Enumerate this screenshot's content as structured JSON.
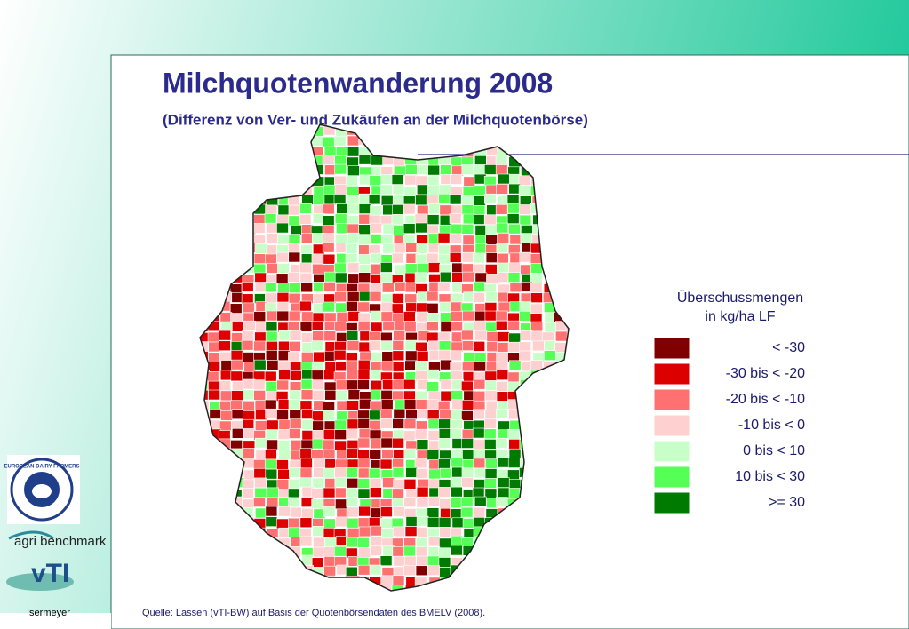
{
  "header": {
    "title": "Milchquotenwanderung 2008",
    "subtitle": "(Differenz von Ver- und Zukäufen an der Milchquotenbörse)"
  },
  "legend": {
    "title_lines": [
      "Überschussmengen",
      "in kg/ha LF"
    ],
    "items": [
      {
        "label": "< -30",
        "color": "#800000"
      },
      {
        "label": "-30 bis < -20",
        "color": "#dd0000"
      },
      {
        "label": "-20 bis < -10",
        "color": "#ff7070"
      },
      {
        "label": "-10 bis <    0",
        "color": "#ffd0d0"
      },
      {
        "label": "0 bis <  10",
        "color": "#c8ffc8"
      },
      {
        "label": "10 bis <  30",
        "color": "#55ff55"
      },
      {
        "label": ">= 30",
        "color": "#007a00"
      }
    ]
  },
  "logos": {
    "edf": "EUROPEAN DAIRY FARMERS",
    "agri": "agri benchmark",
    "vti": "vTI"
  },
  "footer": {
    "author": "Isermeyer",
    "source": "Quelle: Lassen (vTI-BW) auf Basis der Quotenbörsendaten des BMELV (2008)."
  }
}
